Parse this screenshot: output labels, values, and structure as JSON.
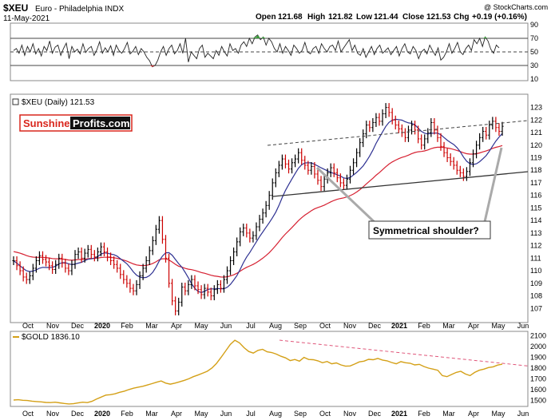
{
  "header": {
    "symbol": "$XEU",
    "name": "Euro - Philadelphia INDX",
    "date": "11-May-2021",
    "open_label": "Open",
    "open": "121.68",
    "high_label": "High",
    "high": "121.82",
    "low_label": "Low",
    "low": "121.44",
    "close_label": "Close",
    "close": "121.53",
    "chg_label": "Chg",
    "chg": "+0.19 (+0.16%)",
    "copyright": "@ StockCharts.com"
  },
  "chart_data": [
    {
      "type": "line",
      "panel": "RSI",
      "y_ticks": [
        90,
        70,
        50,
        30,
        10
      ],
      "ylim": [
        10,
        90
      ],
      "reference_lines": [
        70,
        50,
        30
      ],
      "values": [
        52,
        55,
        48,
        60,
        45,
        58,
        50,
        62,
        47,
        55,
        44,
        58,
        52,
        66,
        48,
        57,
        60,
        45,
        55,
        63,
        40,
        58,
        50,
        54,
        47,
        62,
        49,
        55,
        58,
        45,
        53,
        65,
        48,
        56,
        50,
        59,
        45,
        60,
        52,
        48,
        55,
        64,
        47,
        51,
        58,
        46,
        55,
        50,
        42,
        37,
        28,
        30,
        38,
        50,
        58,
        45,
        55,
        60,
        47,
        52,
        62,
        48,
        70,
        35,
        50,
        45,
        40,
        55,
        60,
        42,
        48,
        44,
        40,
        52,
        45,
        58,
        50,
        44,
        62,
        52,
        55,
        48,
        60,
        65,
        58,
        70,
        62,
        72,
        75,
        68,
        72,
        60,
        70,
        65,
        55,
        50,
        62,
        48,
        58,
        52,
        45,
        60,
        55,
        48,
        52,
        64,
        50,
        47,
        55,
        58,
        48,
        62,
        55,
        50,
        58,
        60,
        52,
        66,
        50,
        56,
        62,
        68,
        52,
        60,
        48,
        45,
        55,
        42,
        50,
        58,
        46,
        55,
        60,
        48,
        52,
        56,
        46,
        52,
        58,
        44,
        55,
        62,
        50,
        47,
        58,
        52,
        40,
        50,
        54,
        47,
        60,
        52,
        45,
        56,
        38,
        42,
        50,
        62,
        48,
        55,
        64,
        50,
        46,
        55,
        60,
        52,
        68,
        62,
        70,
        58,
        72,
        66,
        54,
        48,
        60,
        56
      ]
    },
    {
      "type": "line",
      "panel": "price",
      "label": "$XEU (Daily) 121.53",
      "y_ticks": [
        107,
        108,
        109,
        110,
        111,
        112,
        113,
        114,
        115,
        116,
        117,
        118,
        119,
        120,
        121,
        122,
        123
      ],
      "ylim": [
        106,
        123.8
      ],
      "x_ticks": [
        "Oct",
        "Nov",
        "Dec",
        "2020",
        "Feb",
        "Mar",
        "Apr",
        "May",
        "Jun",
        "Jul",
        "Aug",
        "Sep",
        "Oct",
        "Nov",
        "Dec",
        "2021",
        "Feb",
        "Mar",
        "Apr",
        "May",
        "Jun"
      ],
      "close": [
        110.8,
        110.4,
        110.0,
        109.5,
        109.3,
        109.6,
        110.2,
        110.8,
        111.2,
        110.9,
        110.7,
        110.4,
        110.1,
        110.5,
        111.0,
        110.6,
        110.2,
        110.0,
        110.5,
        111.3,
        111.5,
        111.0,
        111.4,
        111.7,
        111.3,
        111.1,
        111.5,
        111.9,
        111.5,
        111.1,
        110.8,
        110.5,
        110.2,
        109.7,
        109.3,
        109.0,
        108.6,
        108.4,
        108.9,
        109.6,
        110.2,
        110.8,
        111.6,
        112.4,
        113.3,
        114.0,
        112.5,
        111.0,
        109.0,
        107.6,
        106.8,
        107.5,
        108.7,
        108.4,
        108.9,
        109.3,
        108.8,
        108.5,
        108.1,
        108.6,
        108.3,
        108.0,
        108.5,
        108.9,
        108.6,
        109.3,
        110.0,
        110.8,
        111.5,
        112.3,
        113.1,
        113.4,
        113.0,
        112.6,
        112.8,
        113.5,
        114.1,
        114.6,
        115.2,
        116.0,
        117.0,
        117.8,
        118.4,
        118.9,
        118.5,
        118.1,
        118.6,
        118.9,
        119.4,
        118.8,
        118.4,
        118.0,
        118.3,
        117.7,
        117.2,
        116.7,
        117.3,
        117.8,
        118.2,
        117.8,
        117.4,
        117.0,
        116.8,
        117.3,
        118.0,
        118.6,
        119.4,
        120.2,
        120.9,
        121.6,
        121.4,
        121.8,
        122.2,
        121.9,
        122.5,
        123.0,
        122.6,
        122.0,
        121.6,
        121.3,
        121.0,
        120.6,
        121.2,
        121.6,
        121.2,
        120.5,
        120.0,
        120.5,
        121.0,
        121.8,
        121.2,
        120.6,
        119.9,
        119.4,
        119.0,
        118.7,
        118.4,
        118.0,
        117.8,
        117.5,
        117.9,
        118.6,
        119.3,
        120.0,
        120.6,
        121.1,
        120.8,
        121.6,
        121.9,
        121.4,
        121.1,
        121.5
      ]
    },
    {
      "type": "line",
      "panel": "gold",
      "label": "$GOLD 1836.10",
      "y_ticks": [
        1500,
        1600,
        1700,
        1800,
        1900,
        2000,
        2100
      ],
      "ylim": [
        1450,
        2120
      ],
      "x_ticks": [
        "Oct",
        "Nov",
        "Dec",
        "2020",
        "Feb",
        "Mar",
        "Apr",
        "May",
        "Jun",
        "Jul",
        "Aug",
        "Sep",
        "Oct",
        "Nov",
        "Dec",
        "2021",
        "Feb",
        "Mar",
        "Apr",
        "May",
        "Jun"
      ],
      "close": [
        1502,
        1505,
        1500,
        1498,
        1492,
        1488,
        1485,
        1480,
        1478,
        1482,
        1476,
        1470,
        1466,
        1468,
        1475,
        1482,
        1478,
        1490,
        1512,
        1530,
        1548,
        1552,
        1560,
        1574,
        1585,
        1600,
        1612,
        1622,
        1630,
        1642,
        1655,
        1668,
        1680,
        1660,
        1650,
        1660,
        1672,
        1685,
        1700,
        1720,
        1735,
        1752,
        1770,
        1800,
        1842,
        1900,
        1960,
        2020,
        2060,
        2035,
        1990,
        1955,
        1940,
        1965,
        1975,
        1952,
        1945,
        1930,
        1910,
        1895,
        1870,
        1880,
        1865,
        1900,
        1880,
        1878,
        1868,
        1850,
        1862,
        1840,
        1848,
        1830,
        1818,
        1820,
        1838,
        1858,
        1865,
        1882,
        1878,
        1890,
        1875,
        1868,
        1852,
        1840,
        1860,
        1850,
        1845,
        1830,
        1835,
        1815,
        1800,
        1790,
        1780,
        1730,
        1720,
        1740,
        1760,
        1770,
        1745,
        1730,
        1760,
        1780,
        1790,
        1805,
        1812,
        1828,
        1836
      ]
    }
  ],
  "annotations": {
    "symmetrical_shoulder": "Symmetrical shoulder?"
  },
  "logo": {
    "part1": "Sunshine",
    "part2": "Profits.com"
  },
  "colors": {
    "up_bar": "#000000",
    "down_bar": "#cc0000",
    "ma_short": "#2e3192",
    "ma_long": "#d62031",
    "gold_line": "#d4a017",
    "dashed_trend_price": "#444444",
    "dashed_trend_gold": "#e0567a",
    "rsi_overbought_fill": "#3a9c3a",
    "rsi_oversold_fill": "#d63b3b",
    "logo_red": "#d9261c",
    "logo_box": "#d9261c"
  }
}
